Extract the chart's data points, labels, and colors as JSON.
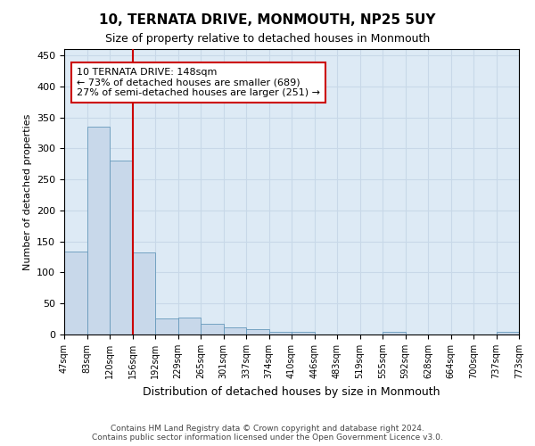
{
  "title": "10, TERNATA DRIVE, MONMOUTH, NP25 5UY",
  "subtitle": "Size of property relative to detached houses in Monmouth",
  "xlabel": "Distribution of detached houses by size in Monmouth",
  "ylabel": "Number of detached properties",
  "bar_color": "#c8d8ea",
  "bar_edge_color": "#6699bb",
  "bar_values": [
    133,
    335,
    281,
    132,
    26,
    27,
    17,
    12,
    8,
    5,
    5,
    0,
    0,
    0,
    4,
    0,
    0,
    0,
    0,
    5
  ],
  "categories": [
    "47sqm",
    "83sqm",
    "120sqm",
    "156sqm",
    "192sqm",
    "229sqm",
    "265sqm",
    "301sqm",
    "337sqm",
    "374sqm",
    "410sqm",
    "446sqm",
    "483sqm",
    "519sqm",
    "555sqm",
    "592sqm",
    "628sqm",
    "664sqm",
    "700sqm",
    "737sqm",
    "773sqm"
  ],
  "ylim": [
    0,
    460
  ],
  "yticks": [
    0,
    50,
    100,
    150,
    200,
    250,
    300,
    350,
    400,
    450
  ],
  "property_line_x": 3,
  "property_line_color": "#cc0000",
  "annotation_text": "10 TERNATA DRIVE: 148sqm\n← 73% of detached houses are smaller (689)\n27% of semi-detached houses are larger (251) →",
  "annotation_box_color": "#cc0000",
  "footer_text": "Contains HM Land Registry data © Crown copyright and database right 2024.\nContains public sector information licensed under the Open Government Licence v3.0.",
  "grid_color": "#c8d8e8",
  "background_color": "#ddeaf5"
}
